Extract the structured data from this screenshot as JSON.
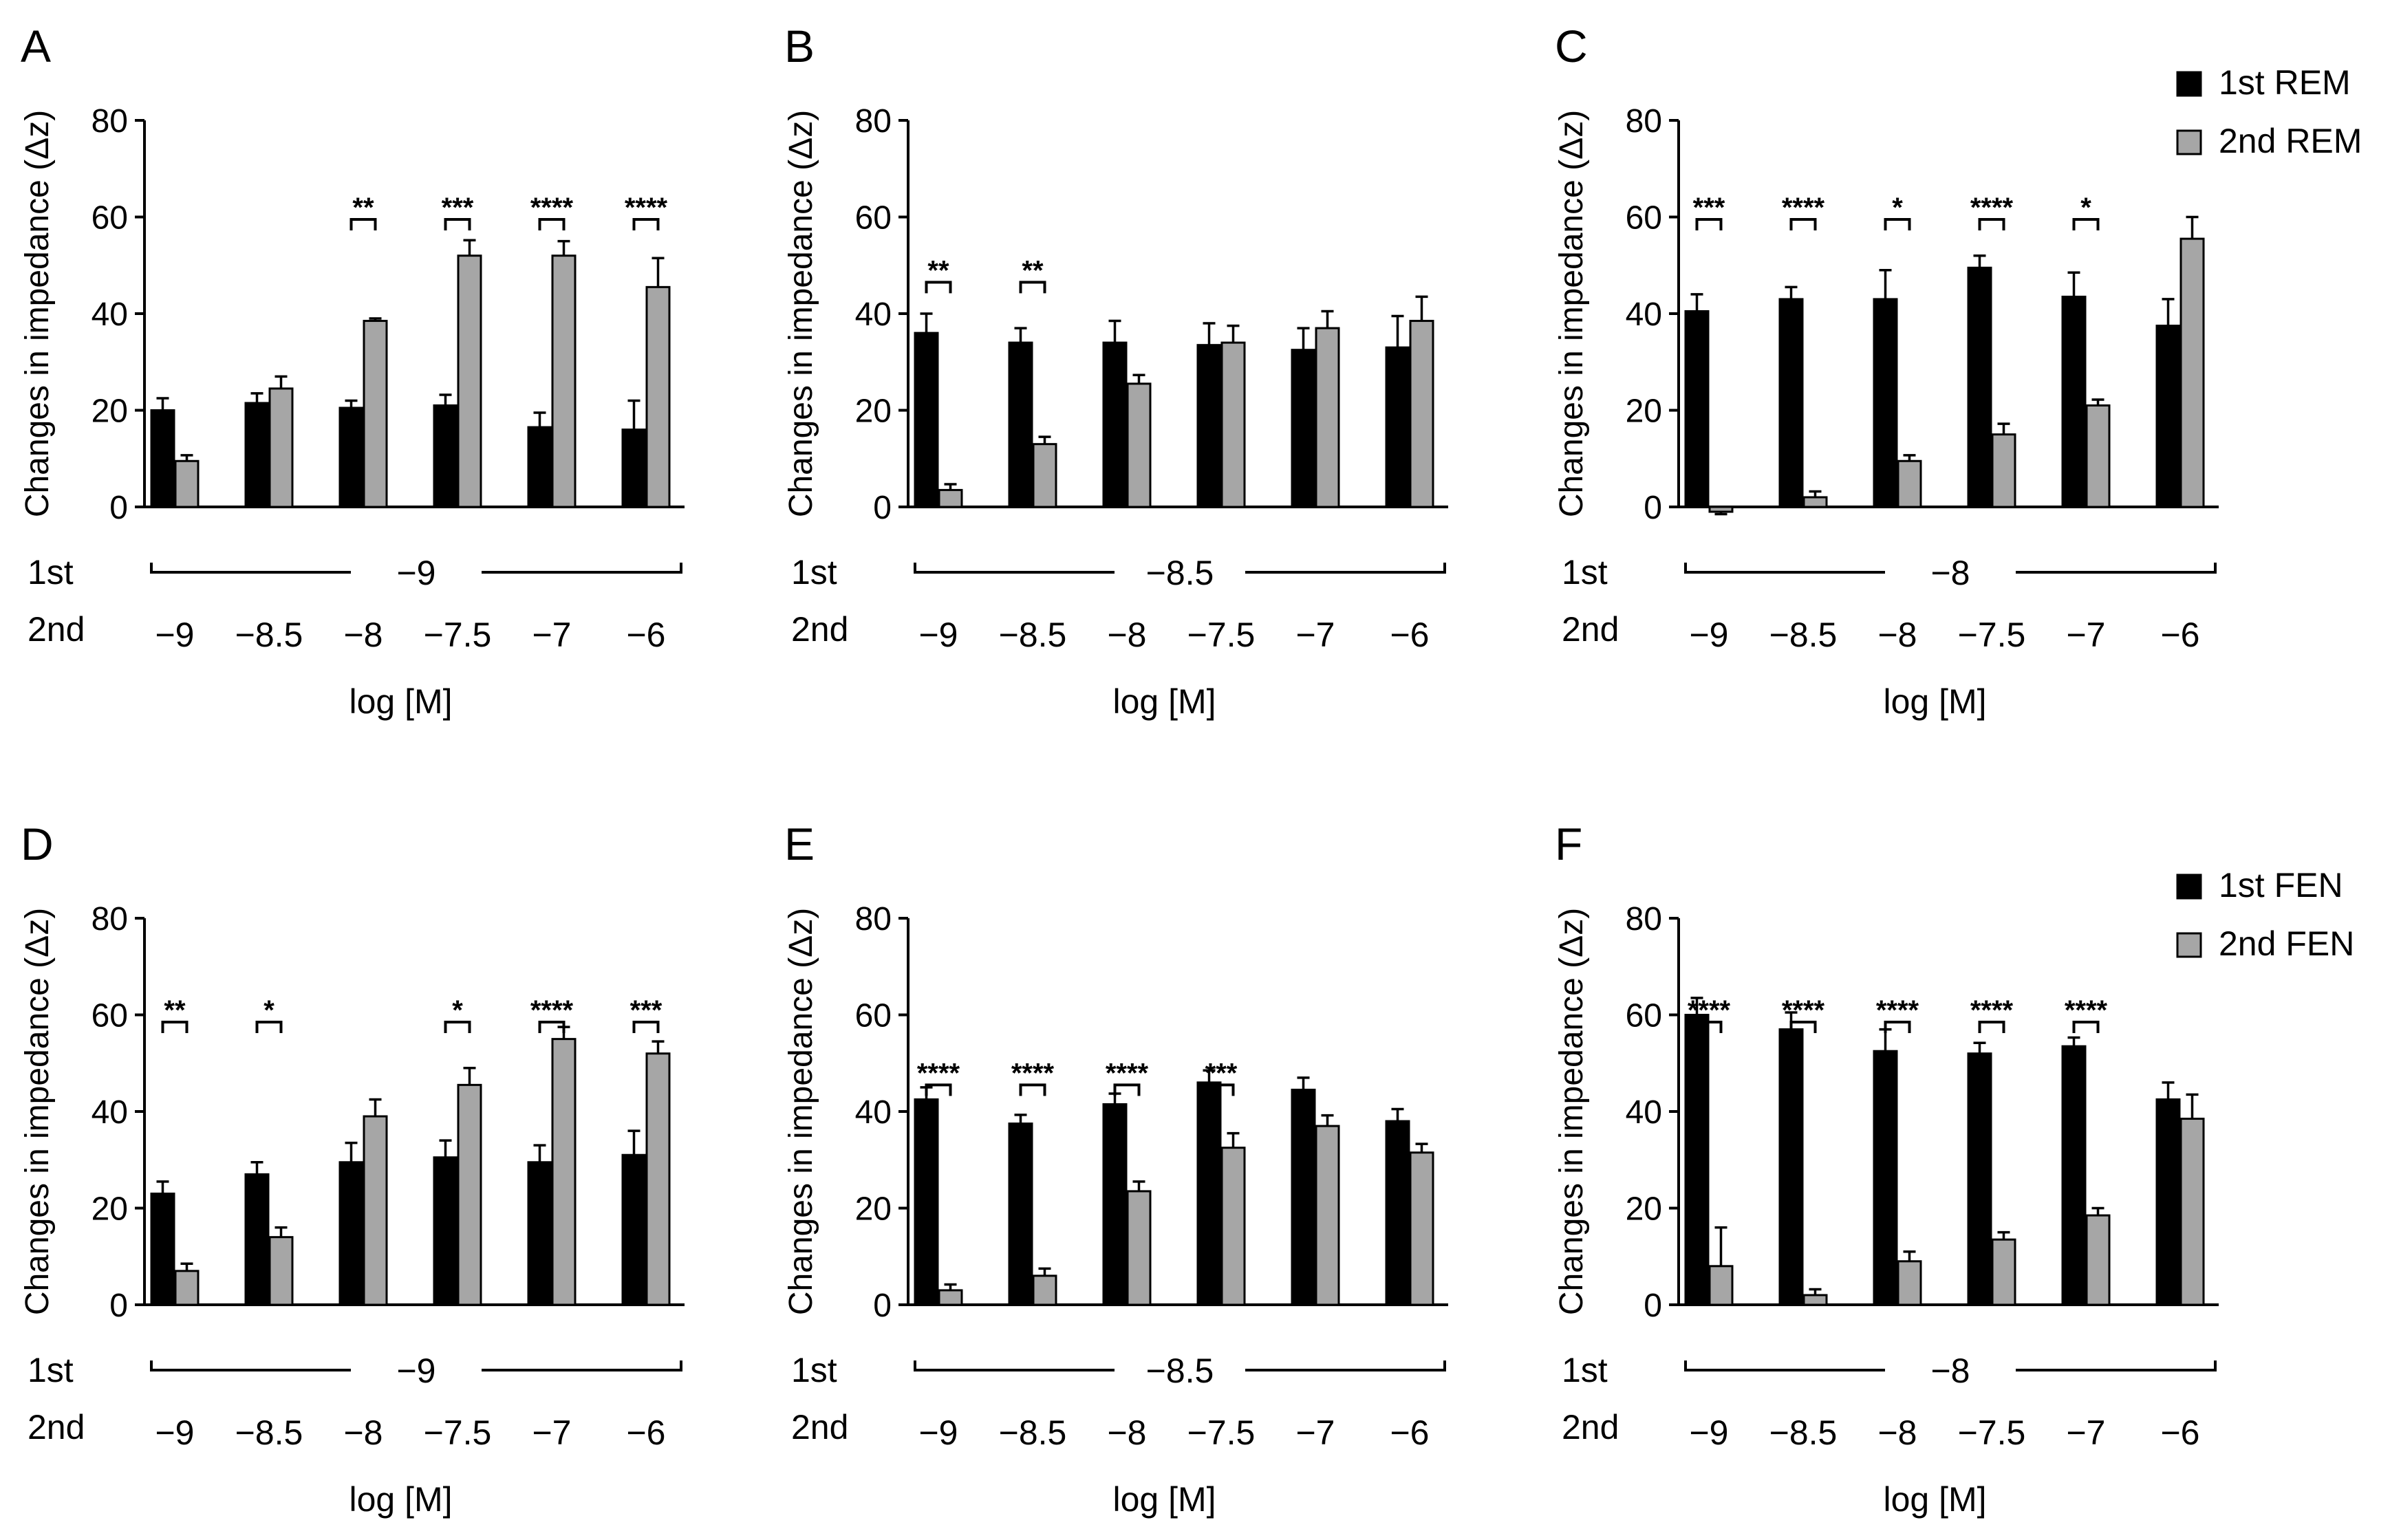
{
  "figure": {
    "ylabel": "Changes in impedance (Δz)",
    "xlabel": "log [M]",
    "row_first_label": "1st",
    "row_second_label": "2nd",
    "colors": {
      "first": "#000000",
      "second": "#a6a6a6",
      "error": "#000000"
    }
  },
  "legends": [
    {
      "series": [
        "1st REM",
        "2nd REM"
      ]
    },
    {
      "series": [
        "1st FEN",
        "2nd FEN"
      ]
    }
  ],
  "chart_data": [
    {
      "panel": "A",
      "type": "bar",
      "title": "",
      "xlabel": "log [M]",
      "ylabel": "Changes in impedance (Δz)",
      "ylim": [
        0,
        80
      ],
      "yticks": [
        0,
        20,
        40,
        60,
        80
      ],
      "first_dose": "−9",
      "categories": [
        "−9",
        "−8.5",
        "−8",
        "−7.5",
        "−7",
        "−6"
      ],
      "series": [
        {
          "name": "1st REM",
          "values": [
            20,
            21.5,
            20.5,
            21,
            16.5,
            16
          ],
          "errors": [
            2.5,
            2,
            1.5,
            2.2,
            3,
            6
          ]
        },
        {
          "name": "2nd REM",
          "values": [
            9.5,
            24.5,
            38.5,
            52,
            52,
            45.5
          ],
          "errors": [
            1.2,
            2.5,
            0.5,
            3.2,
            3,
            6
          ]
        }
      ],
      "significance": [
        "",
        "",
        "**",
        "***",
        "****",
        "****"
      ]
    },
    {
      "panel": "B",
      "type": "bar",
      "title": "",
      "xlabel": "log [M]",
      "ylabel": "Changes in impedance (Δz)",
      "ylim": [
        0,
        80
      ],
      "yticks": [
        0,
        20,
        40,
        60,
        80
      ],
      "first_dose": "−8.5",
      "categories": [
        "−9",
        "−8.5",
        "−8",
        "−7.5",
        "−7",
        "−6"
      ],
      "series": [
        {
          "name": "1st REM",
          "values": [
            36,
            34,
            34,
            33.5,
            32.5,
            33
          ],
          "errors": [
            4,
            3,
            4.5,
            4.5,
            4.5,
            6.5
          ]
        },
        {
          "name": "2nd REM",
          "values": [
            3.5,
            13,
            25.5,
            34,
            37,
            38.5
          ],
          "errors": [
            1.2,
            1.5,
            1.8,
            3.5,
            3.5,
            5
          ]
        }
      ],
      "significance": [
        "**",
        "**",
        "",
        "",
        "",
        ""
      ]
    },
    {
      "panel": "C",
      "type": "bar",
      "title": "",
      "xlabel": "log [M]",
      "ylabel": "Changes in impedance (Δz)",
      "ylim": [
        0,
        80
      ],
      "yticks": [
        0,
        20,
        40,
        60,
        80
      ],
      "first_dose": "−8",
      "categories": [
        "−9",
        "−8.5",
        "−8",
        "−7.5",
        "−7",
        "−6"
      ],
      "series": [
        {
          "name": "1st REM",
          "values": [
            40.5,
            43,
            43,
            49.5,
            43.5,
            37.5
          ],
          "errors": [
            3.5,
            2.5,
            6,
            2.5,
            5,
            5.5
          ]
        },
        {
          "name": "2nd REM",
          "values": [
            -1,
            2,
            9.5,
            15,
            21,
            55.5
          ],
          "errors": [
            0.5,
            1.2,
            1.2,
            2.2,
            1.2,
            4.5
          ]
        }
      ],
      "significance": [
        "***",
        "****",
        "*",
        "****",
        "*",
        ""
      ]
    },
    {
      "panel": "D",
      "type": "bar",
      "title": "",
      "xlabel": "log [M]",
      "ylabel": "Changes in impedance (Δz)",
      "ylim": [
        0,
        80
      ],
      "yticks": [
        0,
        20,
        40,
        60,
        80
      ],
      "first_dose": "−9",
      "categories": [
        "−9",
        "−8.5",
        "−8",
        "−7.5",
        "−7",
        "−6"
      ],
      "series": [
        {
          "name": "1st FEN",
          "values": [
            23,
            27,
            29.5,
            30.5,
            29.5,
            31
          ],
          "errors": [
            2.5,
            2.5,
            4,
            3.5,
            3.5,
            5
          ]
        },
        {
          "name": "2nd FEN",
          "values": [
            7,
            14,
            39,
            45.5,
            55,
            52
          ],
          "errors": [
            1.5,
            2,
            3.5,
            3.5,
            2.5,
            2.5
          ]
        }
      ],
      "significance": [
        "**",
        "*",
        "",
        "*",
        "****",
        "***"
      ]
    },
    {
      "panel": "E",
      "type": "bar",
      "title": "",
      "xlabel": "log [M]",
      "ylabel": "Changes in impedance (Δz)",
      "ylim": [
        0,
        80
      ],
      "yticks": [
        0,
        20,
        40,
        60,
        80
      ],
      "first_dose": "−8.5",
      "categories": [
        "−9",
        "−8.5",
        "−8",
        "−7.5",
        "−7",
        "−6"
      ],
      "series": [
        {
          "name": "1st FEN",
          "values": [
            42.5,
            37.5,
            41.5,
            46,
            44.5,
            38
          ],
          "errors": [
            2.5,
            1.8,
            2.2,
            2.5,
            2.5,
            2.5
          ]
        },
        {
          "name": "2nd FEN",
          "values": [
            3,
            6,
            23.5,
            32.5,
            37,
            31.5
          ],
          "errors": [
            1.2,
            1.5,
            2,
            3,
            2.2,
            1.8
          ]
        }
      ],
      "significance": [
        "****",
        "****",
        "****",
        "***",
        "",
        ""
      ]
    },
    {
      "panel": "F",
      "type": "bar",
      "title": "",
      "xlabel": "log [M]",
      "ylabel": "Changes in impedance (Δz)",
      "ylim": [
        0,
        80
      ],
      "yticks": [
        0,
        20,
        40,
        60,
        80
      ],
      "first_dose": "−8",
      "categories": [
        "−9",
        "−8.5",
        "−8",
        "−7.5",
        "−7",
        "−6"
      ],
      "series": [
        {
          "name": "1st FEN",
          "values": [
            60,
            57,
            52.5,
            52,
            53.5,
            42.5
          ],
          "errors": [
            3.5,
            3.5,
            4.5,
            2.2,
            1.8,
            3.5
          ]
        },
        {
          "name": "2nd FEN",
          "values": [
            8,
            2,
            9,
            13.5,
            18.5,
            38.5
          ],
          "errors": [
            8,
            1.2,
            2,
            1.5,
            1.5,
            5
          ]
        }
      ],
      "significance": [
        "****",
        "****",
        "****",
        "****",
        "****",
        ""
      ]
    }
  ]
}
